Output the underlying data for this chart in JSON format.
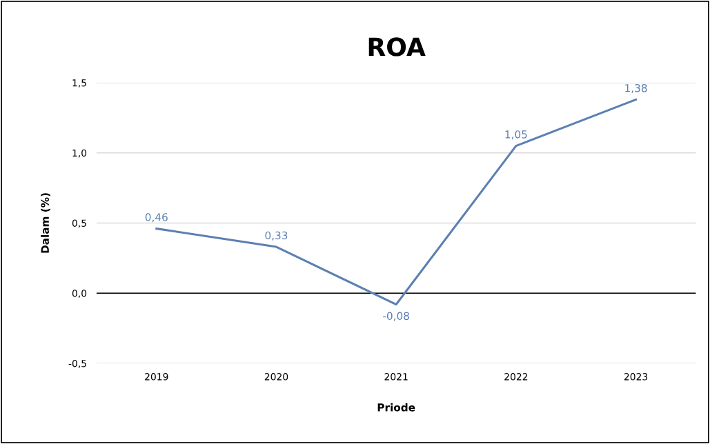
{
  "chart_data": {
    "type": "line",
    "title": "ROA",
    "xlabel": "Priode",
    "ylabel": "Dalam (%)",
    "categories": [
      "2019",
      "2020",
      "2021",
      "2022",
      "2023"
    ],
    "series": [
      {
        "color": "#5b80b2",
        "values": [
          0.46,
          0.33,
          -0.08,
          1.05,
          1.38
        ],
        "value_labels": [
          "0,46",
          "0,33",
          "-0,08",
          "1,05",
          "1,38"
        ]
      }
    ],
    "ylim": [
      -0.5,
      1.5
    ],
    "yticks": [
      {
        "value": -0.5,
        "label": "-0,5"
      },
      {
        "value": 0,
        "label": "0,0"
      },
      {
        "value": 0.5,
        "label": "0,5"
      },
      {
        "value": 1.0,
        "label": "1,0"
      },
      {
        "value": 1.5,
        "label": "1,5"
      }
    ],
    "grid": "y",
    "marker": "none",
    "line_style": "solid"
  }
}
